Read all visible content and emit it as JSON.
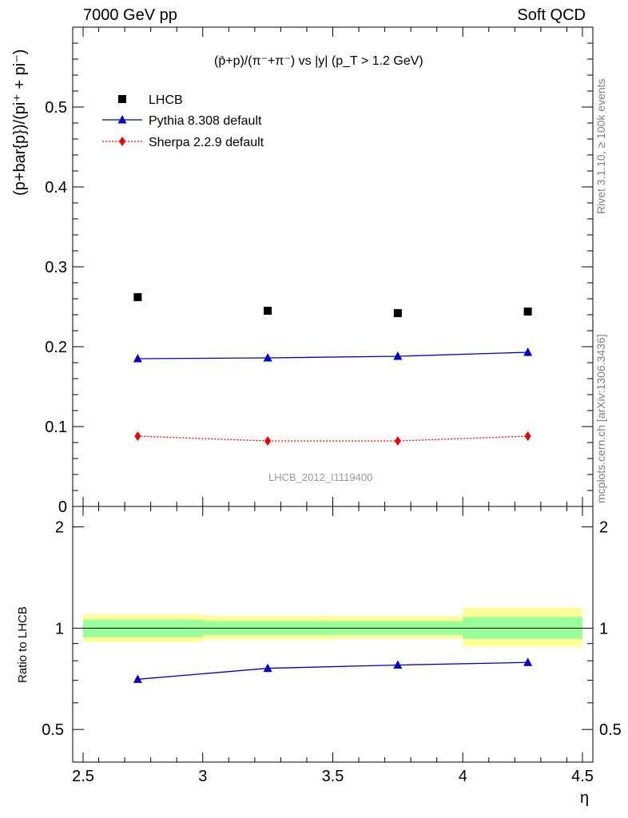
{
  "header": {
    "left": "7000 GeV pp",
    "right": "Soft QCD"
  },
  "side_labels": {
    "rivet": "Rivet 3.1.10, ≥ 100k events",
    "mcplots": "mcplots.cern.ch [arXiv:1306.3436]"
  },
  "watermark": "LHCB_2012_I1119400",
  "chart_data": [
    {
      "type": "scatter",
      "title": "(p̄+p)/(π⁻+π⁻) vs |y| (p_T > 1.2 GeV)",
      "xlabel": "η",
      "ylabel": "(p+bar{p})/(pi⁺ + pi⁻)",
      "xlim": [
        2.5,
        4.5
      ],
      "ylim": [
        0,
        0.6
      ],
      "yticks": [
        0,
        0.1,
        0.2,
        0.3,
        0.4,
        0.5
      ],
      "ytick_labels": [
        "0",
        "0.1",
        "0.2",
        "0.3",
        "0.4",
        "0.5"
      ],
      "legend_position": "top-left",
      "series": [
        {
          "name": "LHCB",
          "color": "#000000",
          "marker": "square",
          "line": "none",
          "x": [
            2.75,
            3.25,
            3.75,
            4.25
          ],
          "y": [
            0.262,
            0.245,
            0.242,
            0.244
          ]
        },
        {
          "name": "Pythia 8.308 default",
          "color": "#0000cc",
          "marker": "triangle",
          "line": "solid",
          "x": [
            2.75,
            3.25,
            3.75,
            4.25
          ],
          "y": [
            0.185,
            0.186,
            0.188,
            0.193
          ],
          "err": [
            0.004,
            0.004,
            0.004,
            0.005
          ]
        },
        {
          "name": "Sherpa 2.2.9 default",
          "color": "#ee0000",
          "marker": "diamond",
          "line": "dotted",
          "x": [
            2.75,
            3.25,
            3.75,
            4.25
          ],
          "y": [
            0.088,
            0.082,
            0.082,
            0.088
          ]
        }
      ]
    },
    {
      "type": "line",
      "ylabel": "Ratio to LHCB",
      "xlabel": "η",
      "xlim": [
        2.5,
        4.5
      ],
      "ylim": [
        0.4,
        2.3
      ],
      "log_scale_y": true,
      "yticks": [
        0.5,
        1,
        2
      ],
      "ytick_labels": [
        "0.5",
        "1",
        "2"
      ],
      "xticks": [
        2.5,
        3,
        3.5,
        4,
        4.5
      ],
      "xtick_labels": [
        "2.5",
        "3",
        "3.5",
        "4",
        "4.5"
      ],
      "bands": [
        {
          "x0": 2.5,
          "x1": 3.0,
          "inner": [
            0.94,
            1.06
          ],
          "outer": [
            0.91,
            1.1
          ]
        },
        {
          "x0": 3.0,
          "x1": 3.5,
          "inner": [
            0.955,
            1.05
          ],
          "outer": [
            0.925,
            1.09
          ]
        },
        {
          "x0": 3.5,
          "x1": 4.0,
          "inner": [
            0.955,
            1.05
          ],
          "outer": [
            0.93,
            1.085
          ]
        },
        {
          "x0": 4.0,
          "x1": 4.5,
          "inner": [
            0.93,
            1.08
          ],
          "outer": [
            0.88,
            1.15
          ]
        }
      ],
      "band_colors": {
        "inner": "#99ff99",
        "outer": "#ffff99"
      },
      "series": [
        {
          "name": "Pythia 8.308 default",
          "color": "#0000cc",
          "marker": "triangle",
          "x": [
            2.75,
            3.25,
            3.75,
            4.25
          ],
          "y": [
            0.705,
            0.76,
            0.777,
            0.791
          ],
          "err": [
            0.01,
            0.01,
            0.012,
            0.014
          ]
        }
      ]
    }
  ]
}
